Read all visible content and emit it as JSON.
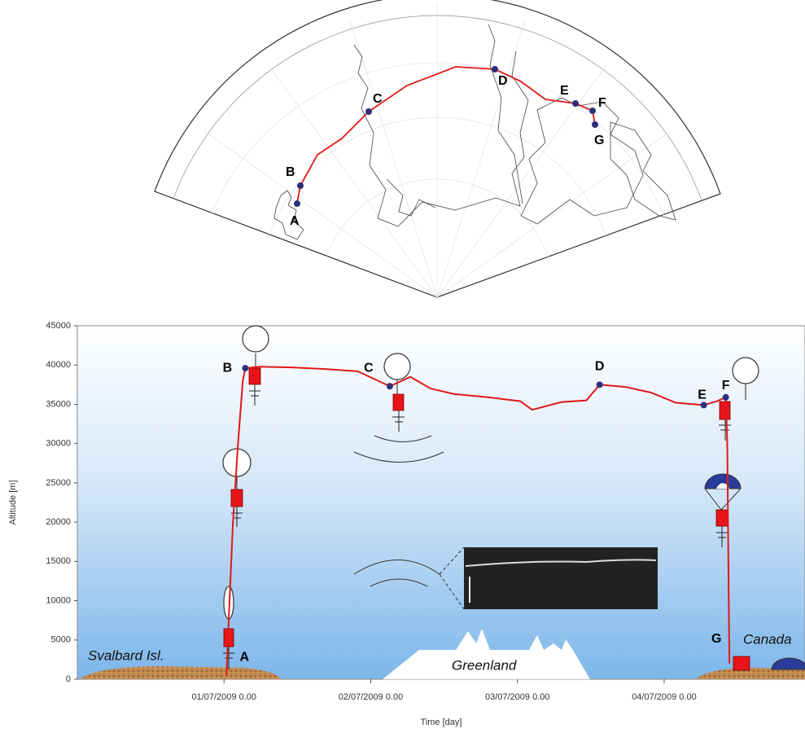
{
  "chart_data": {
    "type": "line",
    "x": [
      1.017,
      1.033,
      1.061,
      1.095,
      1.128,
      1.145,
      1.24,
      1.46,
      1.68,
      1.91,
      2.05,
      2.13,
      2.27,
      2.41,
      2.57,
      2.8,
      3.02,
      3.1,
      3.3,
      3.47,
      3.56,
      3.74,
      3.91,
      4.08,
      4.27,
      4.36,
      4.42,
      4.43,
      4.435,
      4.44,
      4.445
    ],
    "values": [
      500,
      8000,
      20000,
      30000,
      38000,
      39600,
      39800,
      39700,
      39500,
      39200,
      38000,
      37300,
      38500,
      37000,
      36300,
      35900,
      35400,
      34300,
      35300,
      35500,
      37500,
      37200,
      36500,
      35200,
      34900,
      35400,
      35900,
      30000,
      20000,
      10000,
      2000
    ],
    "color": "#e01818",
    "points": [
      {
        "label": "A",
        "x": 1.017,
        "y": 500,
        "marker": false
      },
      {
        "label": "B",
        "x": 1.145,
        "y": 39600,
        "marker": true
      },
      {
        "label": "C",
        "x": 2.13,
        "y": 37300,
        "marker": true
      },
      {
        "label": "D",
        "x": 3.56,
        "y": 37500,
        "marker": true
      },
      {
        "label": "E",
        "x": 4.27,
        "y": 34900,
        "marker": true
      },
      {
        "label": "F",
        "x": 4.42,
        "y": 35900,
        "marker": true
      },
      {
        "label": "G",
        "x": 4.445,
        "y": 2000,
        "marker": false
      }
    ],
    "marker_color": "#2b2f7a",
    "xlabel": "Time [day]",
    "ylabel": "Altitude [m]",
    "xlim": [
      0,
      4.96
    ],
    "ylim": [
      0,
      45000
    ],
    "xticks": [
      {
        "value": 1,
        "label": "01/07/2009 0.00"
      },
      {
        "value": 2,
        "label": "02/07/2009 0.00"
      },
      {
        "value": 3,
        "label": "03/07/2009 0.00"
      },
      {
        "value": 4,
        "label": "04/07/2009 0.00"
      }
    ],
    "yticks": [
      0,
      5000,
      10000,
      15000,
      20000,
      25000,
      30000,
      35000,
      40000,
      45000
    ],
    "grid": false,
    "annotations": [
      "Svalbard Isl.",
      "Greenland",
      "Canada"
    ]
  }
}
